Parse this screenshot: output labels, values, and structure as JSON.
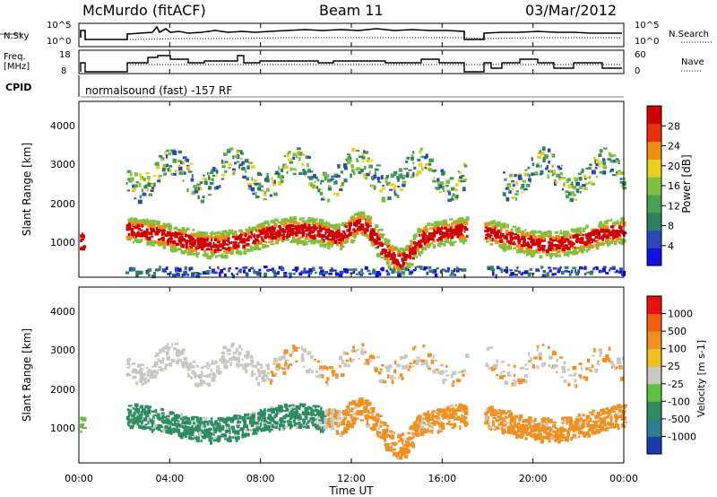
{
  "header": {
    "site": "McMurdo (fitACF)",
    "beam": "Beam 11",
    "date": "03/Mar/2012"
  },
  "nsky_panel": {
    "left_label": "N.Sky",
    "right_label": "N.Search",
    "left_ticks": [
      "10^5",
      "10^0"
    ],
    "right_ticks": [
      "10^5",
      "10^0"
    ]
  },
  "freq_panel": {
    "left_label_line1": "Freq.",
    "left_label_line2": "[MHz]",
    "right_label": "Nave",
    "left_ticks": [
      "18",
      "8"
    ],
    "right_ticks": [
      "60",
      "0"
    ]
  },
  "cpid": {
    "label": "CPID",
    "text": "normalsound (fast) -157 RF"
  },
  "chart_data": [
    {
      "type": "heatmap",
      "name": "Power",
      "ylabel": "Slant Range [km]",
      "yticks": [
        "1000",
        "2000",
        "3000",
        "4000"
      ],
      "ylim": [
        180,
        4500
      ],
      "colorbar_label": "Power [dB]",
      "colorbar_ticks": [
        "4",
        "8",
        "12",
        "16",
        "20",
        "24",
        "28"
      ],
      "colorbar_range": [
        0,
        32
      ],
      "colors": [
        "#1010e0",
        "#2c48b8",
        "#2e8060",
        "#48a050",
        "#7ec040",
        "#e8d020",
        "#f08c10",
        "#e83010",
        "#d00000"
      ]
    },
    {
      "type": "heatmap",
      "name": "Velocity",
      "ylabel": "Slant Range [km]",
      "yticks": [
        "1000",
        "2000",
        "3000",
        "4000"
      ],
      "ylim": [
        180,
        4500
      ],
      "colorbar_label": "Velocity [m s-1]",
      "colorbar_ticks": [
        "1000",
        "500",
        "100",
        "25",
        "-25",
        "-100",
        "-500",
        "-1000"
      ],
      "colors": [
        "#1a3cb0",
        "#2c8090",
        "#2e8c60",
        "#60c040",
        "#c8c8c0",
        "#f0c020",
        "#f09020",
        "#f06010",
        "#e81010"
      ]
    }
  ],
  "xaxis": {
    "label": "Time UT",
    "ticks": [
      "00:00",
      "04:00",
      "08:00",
      "12:00",
      "16:00",
      "20:00",
      "00:00"
    ]
  }
}
